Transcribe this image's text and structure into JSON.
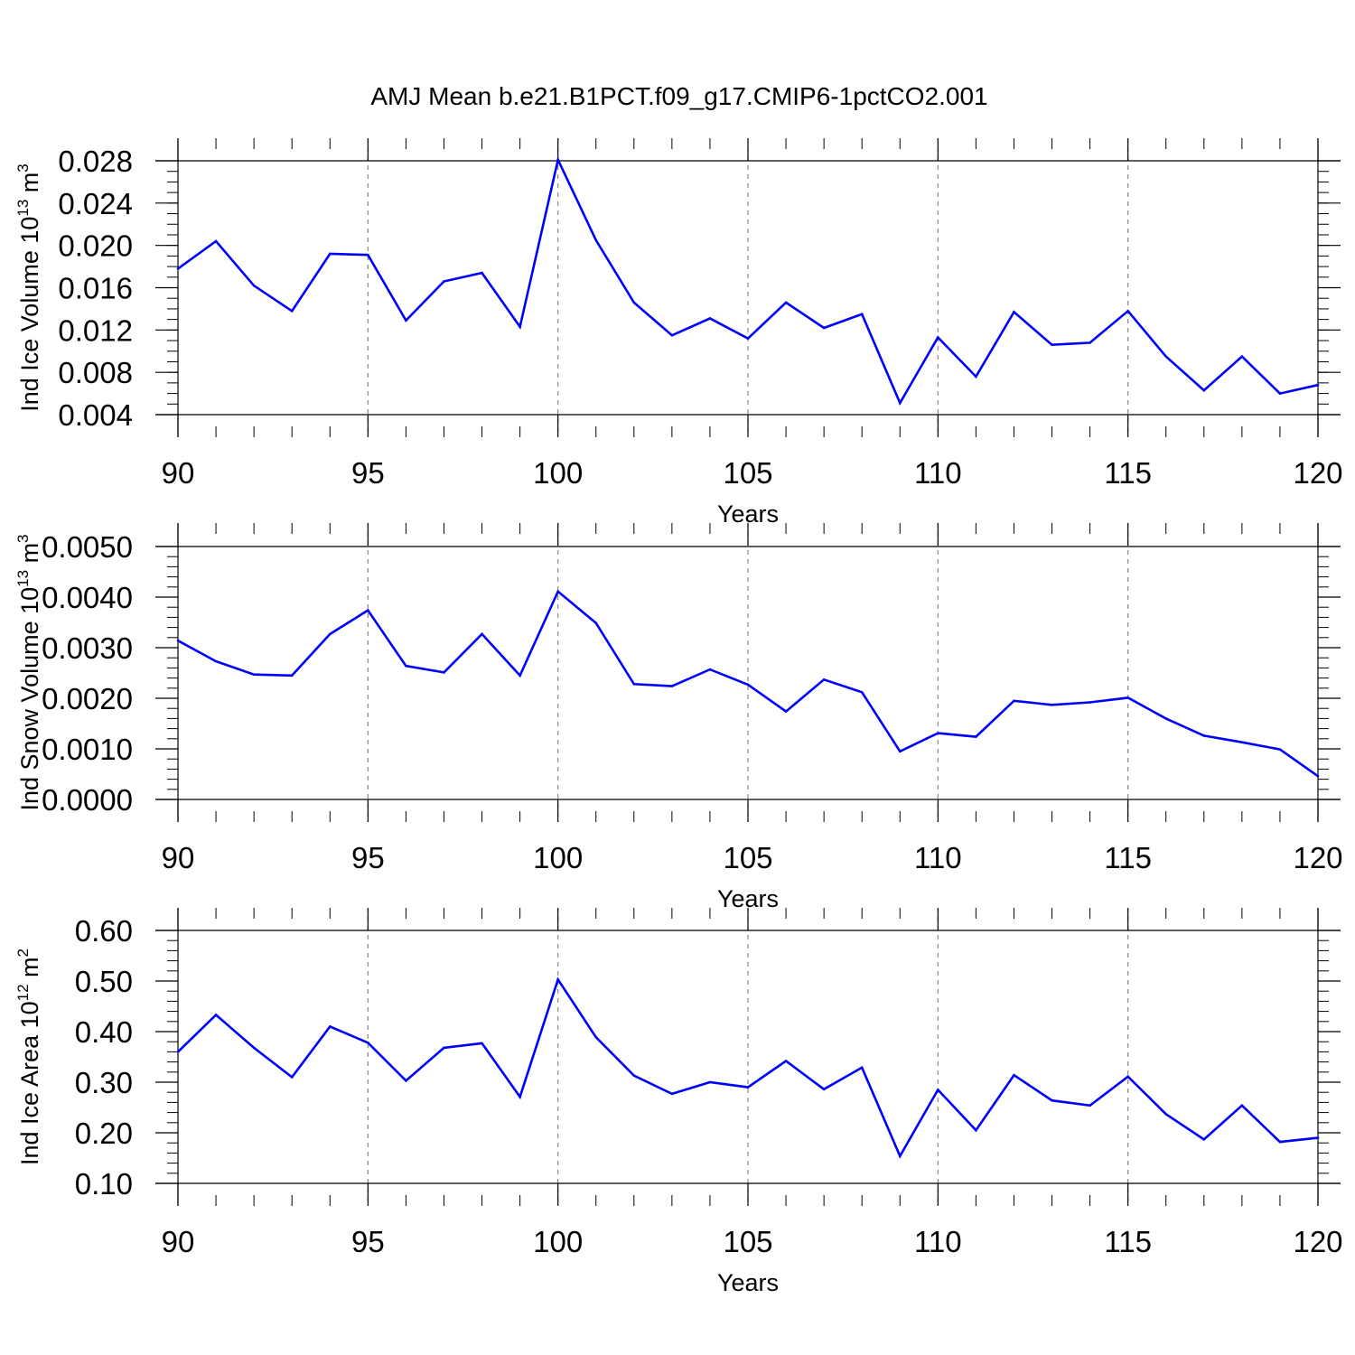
{
  "title": "AMJ Mean b.e21.B1PCT.f09_g17.CMIP6-1pctCO2.001",
  "chart_data": [
    {
      "type": "line",
      "title": "AMJ Mean b.e21.B1PCT.f09_g17.CMIP6-1pctCO2.001",
      "xlabel": "Years",
      "ylabel": "Ind Ice Volume 10",
      "ylabel_sup": "13",
      "ylabel_unit": " m",
      "ylabel_unit_sup": "3",
      "xlim": [
        90,
        120
      ],
      "ylim": [
        0.004,
        0.028
      ],
      "xticks": [
        90,
        95,
        100,
        105,
        110,
        115,
        120
      ],
      "xtick_labels": [
        "90",
        "95",
        "100",
        "105",
        "110",
        "115",
        "120"
      ],
      "yticks": [
        0.004,
        0.008,
        0.012,
        0.016,
        0.02,
        0.024,
        0.028
      ],
      "ytick_labels": [
        "0.004",
        "0.008",
        "0.012",
        "0.016",
        "0.020",
        "0.024",
        "0.028"
      ],
      "grid": "x-dashed",
      "color": "#0000ff",
      "x": [
        90,
        91,
        92,
        93,
        94,
        95,
        96,
        97,
        98,
        99,
        100,
        101,
        102,
        103,
        104,
        105,
        106,
        107,
        108,
        109,
        110,
        111,
        112,
        113,
        114,
        115,
        116,
        117,
        118,
        119,
        120
      ],
      "values": [
        0.0178,
        0.0204,
        0.0162,
        0.0138,
        0.0192,
        0.0191,
        0.0129,
        0.0166,
        0.0174,
        0.0123,
        0.0281,
        0.0205,
        0.0146,
        0.0115,
        0.0131,
        0.0112,
        0.0146,
        0.0122,
        0.0135,
        0.0051,
        0.0113,
        0.0076,
        0.0137,
        0.0106,
        0.0108,
        0.0138,
        0.0095,
        0.0063,
        0.0095,
        0.006,
        0.0068
      ]
    },
    {
      "type": "line",
      "xlabel": "Years",
      "ylabel": "Ind Snow Volume 10",
      "ylabel_sup": "13",
      "ylabel_unit": " m",
      "ylabel_unit_sup": "3",
      "xlim": [
        90,
        120
      ],
      "ylim": [
        0.0,
        0.005
      ],
      "xticks": [
        90,
        95,
        100,
        105,
        110,
        115,
        120
      ],
      "xtick_labels": [
        "90",
        "95",
        "100",
        "105",
        "110",
        "115",
        "120"
      ],
      "yticks": [
        0.0,
        0.001,
        0.002,
        0.003,
        0.004,
        0.005
      ],
      "ytick_labels": [
        "0.0000",
        "0.0010",
        "0.0020",
        "0.0030",
        "0.0040",
        "0.0050"
      ],
      "grid": "x-dashed",
      "color": "#0000ff",
      "x": [
        90,
        91,
        92,
        93,
        94,
        95,
        96,
        97,
        98,
        99,
        100,
        101,
        102,
        103,
        104,
        105,
        106,
        107,
        108,
        109,
        110,
        111,
        112,
        113,
        114,
        115,
        116,
        117,
        118,
        119,
        120
      ],
      "values": [
        0.00314,
        0.00273,
        0.00247,
        0.00245,
        0.00327,
        0.00374,
        0.00264,
        0.00251,
        0.00327,
        0.00245,
        0.00411,
        0.00349,
        0.00228,
        0.00224,
        0.00257,
        0.00227,
        0.00174,
        0.00237,
        0.00212,
        0.00095,
        0.00131,
        0.00124,
        0.00195,
        0.00187,
        0.00192,
        0.00201,
        0.0016,
        0.00126,
        0.00113,
        0.00099,
        0.00046
      ]
    },
    {
      "type": "line",
      "xlabel": "Years",
      "ylabel": "Ind Ice Area 10",
      "ylabel_sup": "12",
      "ylabel_unit": " m",
      "ylabel_unit_sup": "2",
      "xlim": [
        90,
        120
      ],
      "ylim": [
        0.1,
        0.6
      ],
      "xticks": [
        90,
        95,
        100,
        105,
        110,
        115,
        120
      ],
      "xtick_labels": [
        "90",
        "95",
        "100",
        "105",
        "110",
        "115",
        "120"
      ],
      "yticks": [
        0.1,
        0.2,
        0.3,
        0.4,
        0.5,
        0.6
      ],
      "ytick_labels": [
        "0.10",
        "0.20",
        "0.30",
        "0.40",
        "0.50",
        "0.60"
      ],
      "grid": "x-dashed",
      "color": "#0000ff",
      "x": [
        90,
        91,
        92,
        93,
        94,
        95,
        96,
        97,
        98,
        99,
        100,
        101,
        102,
        103,
        104,
        105,
        106,
        107,
        108,
        109,
        110,
        111,
        112,
        113,
        114,
        115,
        116,
        117,
        118,
        119,
        120
      ],
      "values": [
        0.36,
        0.433,
        0.368,
        0.31,
        0.41,
        0.378,
        0.303,
        0.368,
        0.377,
        0.271,
        0.503,
        0.389,
        0.313,
        0.277,
        0.3,
        0.29,
        0.342,
        0.286,
        0.329,
        0.154,
        0.285,
        0.205,
        0.314,
        0.264,
        0.254,
        0.311,
        0.237,
        0.187,
        0.254,
        0.182,
        0.19
      ]
    }
  ]
}
